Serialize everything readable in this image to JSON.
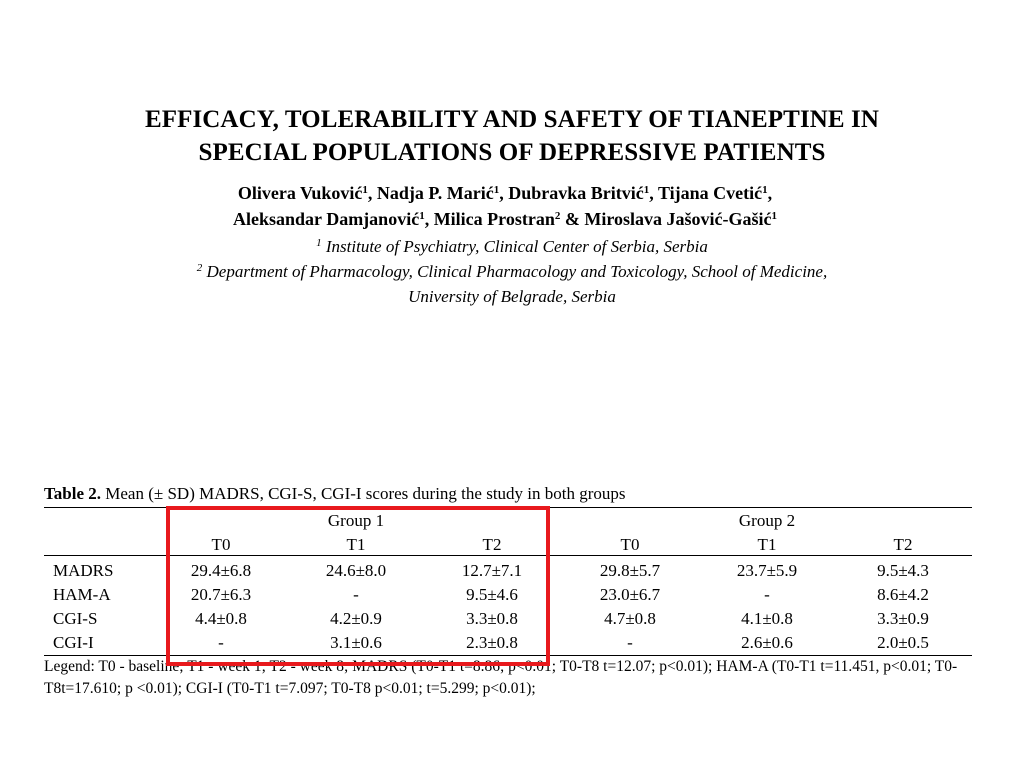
{
  "paper": {
    "title_lines": [
      "EFFICACY, TOLERABILITY AND SAFETY OF TIANEPTINE IN",
      "SPECIAL POPULATIONS OF DEPRESSIVE PATIENTS"
    ],
    "authors": [
      {
        "name": "Olivera Vuković",
        "aff": "1",
        "sep": ", "
      },
      {
        "name": "Nadja P. Marić",
        "aff": "1",
        "sep": ", "
      },
      {
        "name": "Dubravka Britvić",
        "aff": "1",
        "sep": ", "
      },
      {
        "name": "Tijana Cvetić",
        "aff": "1",
        "sep": ","
      },
      {
        "name": "Aleksandar Damjanović",
        "aff": "1",
        "sep": ", "
      },
      {
        "name": "Milica Prostran",
        "aff": "2",
        "sep": " & "
      },
      {
        "name": "Miroslava Jašović-Gašić",
        "aff": "1",
        "sep": ""
      }
    ],
    "affiliations": [
      {
        "mark": "1",
        "text": " Institute of Psychiatry, Clinical Center of Serbia, Serbia"
      },
      {
        "mark": "2",
        "text": " Department of Pharmacology, Clinical Pharmacology and Toxicology, School of Medicine,"
      },
      {
        "mark": "",
        "text": "University of Belgrade, Serbia"
      }
    ]
  },
  "table": {
    "caption_label": "Table 2.",
    "caption_text": " Mean (± SD) MADRS, CGI-S, CGI-I scores during the study in both groups",
    "groups": [
      "Group 1",
      "Group 2"
    ],
    "columns": [
      "T0",
      "T1",
      "T2",
      "T0",
      "T1",
      "T2"
    ],
    "rows": [
      {
        "label": "MADRS",
        "cells": [
          "29.4±6.8",
          "24.6±8.0",
          "12.7±7.1",
          "29.8±5.7",
          "23.7±5.9",
          "9.5±4.3"
        ]
      },
      {
        "label": "HAM-A",
        "cells": [
          "20.7±6.3",
          "-",
          "9.5±4.6",
          "23.0±6.7",
          "-",
          "8.6±4.2"
        ]
      },
      {
        "label": "CGI-S",
        "cells": [
          "4.4±0.8",
          "4.2±0.9",
          "3.3±0.8",
          "4.7±0.8",
          "4.1±0.8",
          "3.3±0.9"
        ]
      },
      {
        "label": "CGI-I",
        "cells": [
          "-",
          "3.1±0.6",
          "2.3±0.8",
          "-",
          "2.6±0.6",
          "2.0±0.5"
        ]
      }
    ],
    "legend": "Legend: T0 - baseline; T1 - week 1; T2 - week 8; MADRS (T0-T1 t=8.86; p<0.01; T0-T8 t=12.07; p<0.01); HAM-A (T0-T1 t=11.451, p<0.01; T0-T8t=17.610; p <0.01); CGI-I (T0-T1 t=7.097; T0-T8 p<0.01; t=5.299; p<0.01);"
  },
  "highlight": {
    "color": "#e8191d"
  }
}
